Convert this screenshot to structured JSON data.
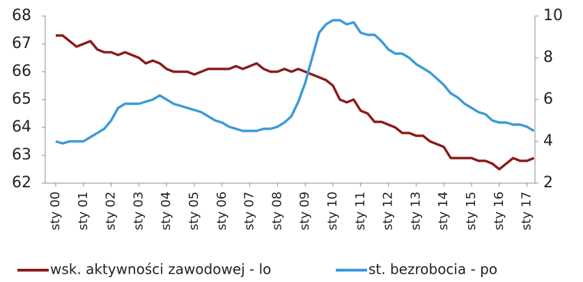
{
  "chart_data": {
    "type": "line",
    "categories": [
      "sty 00",
      null,
      null,
      null,
      "sty 01",
      null,
      null,
      null,
      "sty 02",
      null,
      null,
      null,
      "sty 03",
      null,
      null,
      null,
      "sty 04",
      null,
      null,
      null,
      "sty 05",
      null,
      null,
      null,
      "sty 06",
      null,
      null,
      null,
      "sty 07",
      null,
      null,
      null,
      "sty 08",
      null,
      null,
      null,
      "sty 09",
      null,
      null,
      null,
      "sty 10",
      null,
      null,
      null,
      "sty 11",
      null,
      null,
      null,
      "sty 12",
      null,
      null,
      null,
      "sty 13",
      null,
      null,
      null,
      "sty 14",
      null,
      null,
      null,
      "sty 15",
      null,
      null,
      null,
      "sty 16",
      null,
      null,
      null,
      "sty 17",
      null
    ],
    "series": [
      {
        "name": "wsk. aktywności zawodowej - lo",
        "color": "#8b1a1a",
        "axis": "y",
        "values": [
          67.3,
          67.3,
          67.1,
          66.9,
          67.0,
          67.1,
          66.8,
          66.7,
          66.7,
          66.6,
          66.7,
          66.6,
          66.5,
          66.3,
          66.4,
          66.3,
          66.1,
          66.0,
          66.0,
          66.0,
          65.9,
          66.0,
          66.1,
          66.1,
          66.1,
          66.1,
          66.2,
          66.1,
          66.2,
          66.3,
          66.1,
          66.0,
          66.0,
          66.1,
          66.0,
          66.1,
          66.0,
          65.9,
          65.8,
          65.7,
          65.5,
          65.0,
          64.9,
          65.0,
          64.6,
          64.5,
          64.2,
          64.2,
          64.1,
          64.0,
          63.8,
          63.8,
          63.7,
          63.7,
          63.5,
          63.4,
          63.3,
          62.9,
          62.9,
          62.9,
          62.9,
          62.8,
          62.8,
          62.7,
          62.5,
          62.7,
          62.9,
          62.8,
          62.8,
          62.9
        ]
      },
      {
        "name": "st. bezrobocia - po",
        "color": "#3a9ad9",
        "axis": "y2",
        "values": [
          4.0,
          3.9,
          4.0,
          4.0,
          4.0,
          4.2,
          4.4,
          4.6,
          5.0,
          5.6,
          5.8,
          5.8,
          5.8,
          5.9,
          6.0,
          6.2,
          6.0,
          5.8,
          5.7,
          5.6,
          5.5,
          5.4,
          5.2,
          5.0,
          4.9,
          4.7,
          4.6,
          4.5,
          4.5,
          4.5,
          4.6,
          4.6,
          4.7,
          4.9,
          5.2,
          5.9,
          6.8,
          8.0,
          9.2,
          9.6,
          9.8,
          9.8,
          9.6,
          9.7,
          9.2,
          9.1,
          9.1,
          8.8,
          8.4,
          8.2,
          8.2,
          8.0,
          7.7,
          7.5,
          7.3,
          7.0,
          6.7,
          6.3,
          6.1,
          5.8,
          5.6,
          5.4,
          5.3,
          5.0,
          4.9,
          4.9,
          4.8,
          4.8,
          4.7,
          4.5
        ]
      }
    ],
    "ylim": [
      62,
      68
    ],
    "yticks": [
      62,
      63,
      64,
      65,
      66,
      67,
      68
    ],
    "y2lim": [
      2,
      10
    ],
    "y2ticks": [
      2,
      4,
      6,
      8,
      10
    ],
    "legend": "bottom"
  }
}
